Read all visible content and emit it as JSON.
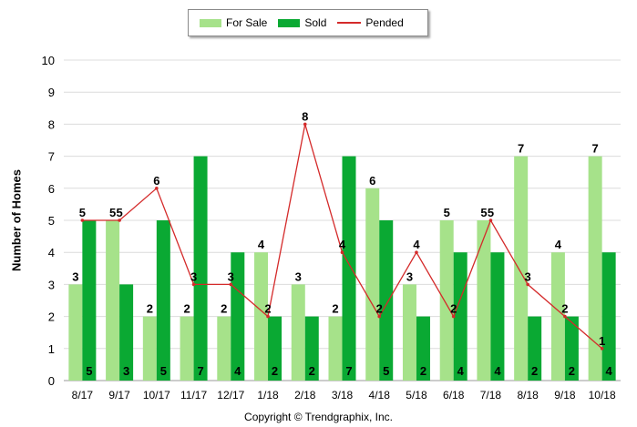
{
  "legend": {
    "for_sale": "For Sale",
    "sold": "Sold",
    "pended": "Pended"
  },
  "footer": {
    "copyright": "Copyright © Trendgraphix, Inc."
  },
  "colors": {
    "for_sale": "#a6e28a",
    "sold": "#0aa933",
    "pended": "#d42a2a",
    "grid": "#dcdcdc"
  },
  "chart_data": {
    "type": "bar",
    "title": "",
    "xlabel": "",
    "ylabel": "Number of Homes",
    "ylim": [
      0,
      10
    ],
    "yticks": [
      0,
      1,
      2,
      3,
      4,
      5,
      6,
      7,
      8,
      9,
      10
    ],
    "grid": true,
    "legend_position": "top-center",
    "categories": [
      "8/17",
      "9/17",
      "10/17",
      "11/17",
      "12/17",
      "1/18",
      "2/18",
      "3/18",
      "4/18",
      "5/18",
      "6/18",
      "7/18",
      "8/18",
      "9/18",
      "10/18"
    ],
    "series": [
      {
        "name": "For Sale",
        "type": "bar",
        "values": [
          3,
          5,
          2,
          2,
          2,
          4,
          3,
          2,
          6,
          3,
          5,
          5,
          7,
          4,
          7
        ]
      },
      {
        "name": "Sold",
        "type": "bar",
        "values": [
          5,
          3,
          5,
          7,
          4,
          2,
          2,
          7,
          5,
          2,
          4,
          4,
          2,
          2,
          4
        ]
      },
      {
        "name": "Pended",
        "type": "line",
        "values": [
          5,
          5,
          6,
          3,
          3,
          2,
          8,
          4,
          2,
          4,
          2,
          5,
          3,
          2,
          1
        ]
      }
    ]
  }
}
